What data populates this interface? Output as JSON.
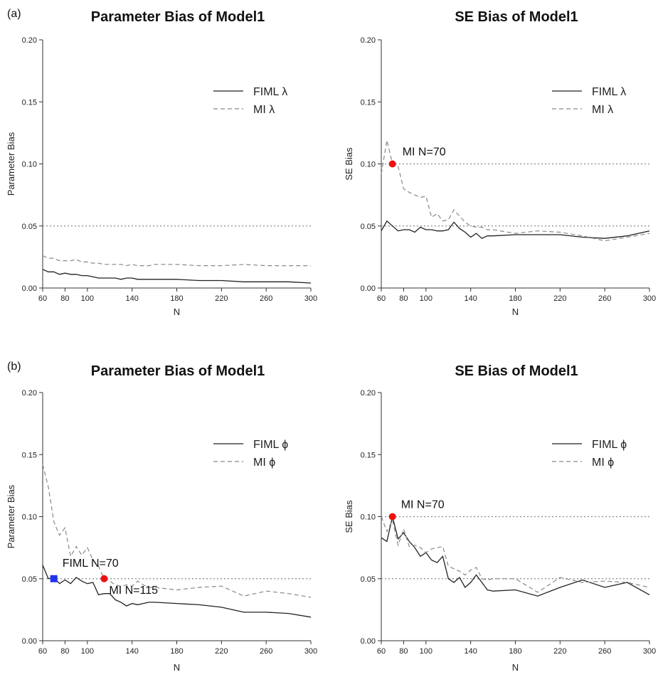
{
  "panel_labels": [
    "(a)",
    "(b)"
  ],
  "chart_data": [
    {
      "type": "line",
      "title": "Parameter Bias of Model1",
      "xlabel": "N",
      "ylabel": "Parameter Bias",
      "xlim": [
        60,
        300
      ],
      "ylim": [
        0,
        0.2
      ],
      "x_ticks": [
        "60",
        "80",
        "100",
        "140",
        "180",
        "220",
        "260",
        "300"
      ],
      "y_ticks": [
        "0.00",
        "0.05",
        "0.10",
        "0.15",
        "0.20"
      ],
      "reference_lines": [
        0.05
      ],
      "legend_position": "top-right",
      "series": [
        {
          "name": "FIML λ",
          "style": "solid",
          "color": "#222222",
          "x": [
            60,
            65,
            70,
            75,
            80,
            85,
            90,
            95,
            100,
            105,
            110,
            115,
            120,
            125,
            130,
            135,
            140,
            145,
            150,
            155,
            160,
            180,
            200,
            220,
            240,
            260,
            280,
            300
          ],
          "y": [
            0.015,
            0.013,
            0.013,
            0.011,
            0.012,
            0.011,
            0.011,
            0.01,
            0.01,
            0.009,
            0.008,
            0.008,
            0.008,
            0.008,
            0.007,
            0.008,
            0.008,
            0.007,
            0.007,
            0.007,
            0.007,
            0.007,
            0.006,
            0.006,
            0.005,
            0.005,
            0.005,
            0.004
          ]
        },
        {
          "name": "MI λ",
          "style": "dashed",
          "color": "#888888",
          "x": [
            60,
            65,
            70,
            75,
            80,
            85,
            90,
            95,
            100,
            105,
            110,
            115,
            120,
            125,
            130,
            135,
            140,
            145,
            150,
            155,
            160,
            180,
            200,
            220,
            240,
            260,
            280,
            300
          ],
          "y": [
            0.026,
            0.024,
            0.024,
            0.022,
            0.022,
            0.022,
            0.023,
            0.021,
            0.021,
            0.02,
            0.02,
            0.019,
            0.019,
            0.019,
            0.019,
            0.018,
            0.019,
            0.018,
            0.018,
            0.018,
            0.019,
            0.019,
            0.018,
            0.018,
            0.019,
            0.018,
            0.018,
            0.018
          ]
        }
      ],
      "annotations": []
    },
    {
      "type": "line",
      "title": "SE Bias of Model1",
      "xlabel": "N",
      "ylabel": "SE Bias",
      "xlim": [
        60,
        300
      ],
      "ylim": [
        0,
        0.2
      ],
      "x_ticks": [
        "60",
        "80",
        "100",
        "140",
        "180",
        "220",
        "260",
        "300"
      ],
      "y_ticks": [
        "0.00",
        "0.05",
        "0.10",
        "0.15",
        "0.20"
      ],
      "reference_lines": [
        0.05,
        0.1
      ],
      "legend_position": "top-right",
      "series": [
        {
          "name": "FIML λ",
          "style": "solid",
          "color": "#222222",
          "x": [
            60,
            65,
            70,
            75,
            80,
            85,
            90,
            95,
            100,
            105,
            110,
            115,
            120,
            125,
            130,
            135,
            140,
            145,
            150,
            155,
            160,
            180,
            200,
            220,
            240,
            260,
            280,
            300
          ],
          "y": [
            0.046,
            0.054,
            0.05,
            0.046,
            0.047,
            0.047,
            0.045,
            0.049,
            0.047,
            0.047,
            0.046,
            0.046,
            0.047,
            0.053,
            0.048,
            0.045,
            0.041,
            0.044,
            0.04,
            0.042,
            0.042,
            0.043,
            0.043,
            0.043,
            0.041,
            0.04,
            0.042,
            0.046
          ]
        },
        {
          "name": "MI λ",
          "style": "dashed",
          "color": "#888888",
          "x": [
            60,
            65,
            70,
            75,
            80,
            85,
            90,
            95,
            100,
            105,
            110,
            115,
            120,
            125,
            130,
            135,
            140,
            145,
            150,
            155,
            160,
            180,
            200,
            220,
            240,
            260,
            280,
            300
          ],
          "y": [
            0.092,
            0.119,
            0.1,
            0.098,
            0.08,
            0.077,
            0.075,
            0.073,
            0.074,
            0.057,
            0.06,
            0.054,
            0.055,
            0.063,
            0.058,
            0.053,
            0.05,
            0.049,
            0.049,
            0.047,
            0.047,
            0.044,
            0.046,
            0.045,
            0.042,
            0.038,
            0.041,
            0.044
          ]
        }
      ],
      "annotations": [
        {
          "x": 70,
          "y": 0.1,
          "marker": "circle",
          "color": "#ee1111",
          "label": "MI  N=70"
        }
      ]
    },
    {
      "type": "line",
      "title": "Parameter Bias of Model1",
      "xlabel": "N",
      "ylabel": "Parameter Bias",
      "xlim": [
        60,
        300
      ],
      "ylim": [
        0,
        0.2
      ],
      "x_ticks": [
        "60",
        "80",
        "100",
        "140",
        "180",
        "220",
        "260",
        "300"
      ],
      "y_ticks": [
        "0.00",
        "0.05",
        "0.10",
        "0.15",
        "0.20"
      ],
      "reference_lines": [
        0.05
      ],
      "legend_position": "top-right",
      "series": [
        {
          "name": "FIML ϕ",
          "style": "solid",
          "color": "#222222",
          "x": [
            60,
            65,
            70,
            75,
            80,
            85,
            90,
            95,
            100,
            105,
            110,
            115,
            120,
            125,
            130,
            135,
            140,
            145,
            150,
            155,
            160,
            180,
            200,
            220,
            240,
            260,
            280,
            300
          ],
          "y": [
            0.061,
            0.05,
            0.051,
            0.046,
            0.049,
            0.046,
            0.051,
            0.048,
            0.046,
            0.047,
            0.037,
            0.038,
            0.038,
            0.033,
            0.031,
            0.028,
            0.03,
            0.029,
            0.03,
            0.031,
            0.031,
            0.03,
            0.029,
            0.027,
            0.023,
            0.023,
            0.022,
            0.019
          ]
        },
        {
          "name": "MI ϕ",
          "style": "dashed",
          "color": "#888888",
          "x": [
            60,
            65,
            70,
            75,
            80,
            85,
            90,
            95,
            100,
            105,
            110,
            115,
            120,
            125,
            130,
            135,
            140,
            145,
            150,
            155,
            160,
            180,
            200,
            220,
            240,
            260,
            280,
            300
          ],
          "y": [
            0.142,
            0.124,
            0.096,
            0.085,
            0.091,
            0.068,
            0.076,
            0.069,
            0.075,
            0.065,
            0.06,
            0.05,
            0.048,
            0.045,
            0.044,
            0.045,
            0.044,
            0.048,
            0.045,
            0.043,
            0.043,
            0.041,
            0.043,
            0.044,
            0.036,
            0.04,
            0.038,
            0.035
          ]
        }
      ],
      "annotations": [
        {
          "x": 70,
          "y": 0.05,
          "marker": "square",
          "color": "#2233ee",
          "label": "FIML   N=70"
        },
        {
          "x": 115,
          "y": 0.05,
          "marker": "circle",
          "color": "#ee1111",
          "label": "MI  N=115"
        }
      ]
    },
    {
      "type": "line",
      "title": "SE Bias of Model1",
      "xlabel": "N",
      "ylabel": "SE Bias",
      "xlim": [
        60,
        300
      ],
      "ylim": [
        0,
        0.2
      ],
      "x_ticks": [
        "60",
        "80",
        "100",
        "140",
        "180",
        "220",
        "260",
        "300"
      ],
      "y_ticks": [
        "0.00",
        "0.05",
        "0.10",
        "0.15",
        "0.20"
      ],
      "reference_lines": [
        0.05,
        0.1
      ],
      "legend_position": "top-right",
      "series": [
        {
          "name": "FIML ϕ",
          "style": "solid",
          "color": "#222222",
          "x": [
            60,
            65,
            70,
            75,
            80,
            85,
            90,
            95,
            100,
            105,
            110,
            115,
            120,
            125,
            130,
            135,
            140,
            145,
            150,
            155,
            160,
            180,
            200,
            220,
            240,
            260,
            280,
            300
          ],
          "y": [
            0.083,
            0.08,
            0.1,
            0.082,
            0.087,
            0.08,
            0.075,
            0.068,
            0.071,
            0.065,
            0.063,
            0.068,
            0.05,
            0.047,
            0.051,
            0.043,
            0.047,
            0.053,
            0.047,
            0.041,
            0.04,
            0.041,
            0.036,
            0.043,
            0.049,
            0.043,
            0.047,
            0.037
          ]
        },
        {
          "name": "MI ϕ",
          "style": "dashed",
          "color": "#888888",
          "x": [
            60,
            65,
            70,
            75,
            80,
            85,
            90,
            95,
            100,
            105,
            110,
            115,
            120,
            125,
            130,
            135,
            140,
            145,
            150,
            155,
            160,
            180,
            200,
            220,
            240,
            260,
            280,
            300
          ],
          "y": [
            0.1,
            0.088,
            0.097,
            0.077,
            0.09,
            0.076,
            0.077,
            0.075,
            0.071,
            0.074,
            0.075,
            0.076,
            0.06,
            0.058,
            0.056,
            0.053,
            0.057,
            0.059,
            0.05,
            0.049,
            0.05,
            0.05,
            0.039,
            0.051,
            0.047,
            0.048,
            0.047,
            0.043
          ]
        }
      ],
      "annotations": [
        {
          "x": 70,
          "y": 0.1,
          "marker": "circle",
          "color": "#ee1111",
          "label": "MI  N=70"
        }
      ]
    }
  ]
}
